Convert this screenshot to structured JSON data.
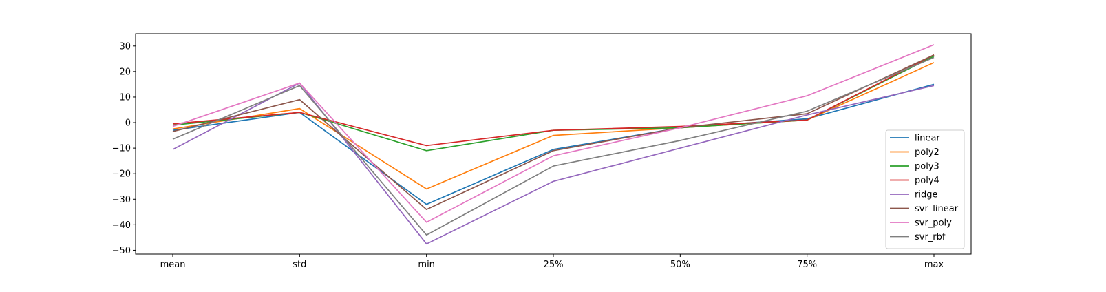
{
  "chart_data": {
    "type": "line",
    "title": "",
    "xlabel": "",
    "ylabel": "",
    "categories": [
      "mean",
      "std",
      "min",
      "25%",
      "50%",
      "75%",
      "max"
    ],
    "ylim": [
      -51.5,
      34.8
    ],
    "yticks": [
      30,
      20,
      10,
      0,
      -10,
      -20,
      -30,
      -40,
      -50
    ],
    "ytick_labels": [
      "30",
      "20",
      "10",
      "0",
      "−10",
      "−20",
      "−30",
      "−40",
      "−50"
    ],
    "grid": false,
    "legend_position": "lower-right",
    "series": [
      {
        "name": "linear",
        "color": "#1f77b4",
        "values": [
          -3.0,
          4.0,
          -32.0,
          -10.5,
          -2.0,
          1.5,
          15.0
        ]
      },
      {
        "name": "poly2",
        "color": "#ff7f0e",
        "values": [
          -2.5,
          5.5,
          -26.0,
          -5.0,
          -2.0,
          1.0,
          23.5
        ]
      },
      {
        "name": "poly3",
        "color": "#2ca02c",
        "values": [
          -1.0,
          4.0,
          -11.0,
          -3.0,
          -2.0,
          1.0,
          26.0
        ]
      },
      {
        "name": "poly4",
        "color": "#d62728",
        "values": [
          -0.5,
          4.0,
          -9.0,
          -3.0,
          -1.5,
          1.0,
          26.5
        ]
      },
      {
        "name": "ridge",
        "color": "#9467bd",
        "values": [
          -10.5,
          15.5,
          -47.5,
          -23.0,
          -10.0,
          3.0,
          14.5
        ]
      },
      {
        "name": "svr_linear",
        "color": "#8c564b",
        "values": [
          -3.5,
          9.0,
          -34.0,
          -11.0,
          -2.0,
          3.5,
          26.5
        ]
      },
      {
        "name": "svr_poly",
        "color": "#e377c2",
        "values": [
          -1.5,
          15.5,
          -39.0,
          -13.0,
          -2.0,
          10.5,
          30.5
        ]
      },
      {
        "name": "svr_rbf",
        "color": "#7f7f7f",
        "values": [
          -6.5,
          14.5,
          -44.0,
          -17.0,
          -7.0,
          4.5,
          25.5
        ]
      }
    ]
  }
}
